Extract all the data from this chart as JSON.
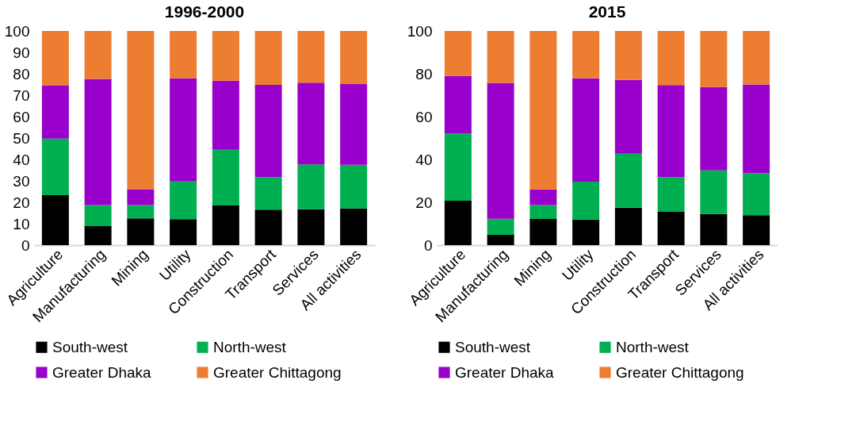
{
  "chart_data": [
    {
      "type": "bar",
      "title": "1996-2000",
      "stacked": true,
      "legend": "bottom",
      "grid": false,
      "categories": [
        "Agriculture",
        "Manufacturing",
        "Mining",
        "Utility",
        "Construction",
        "Transport",
        "Services",
        "All activities"
      ],
      "ylim": [
        0,
        100
      ],
      "yticks": [
        0,
        10,
        20,
        30,
        40,
        50,
        60,
        70,
        80,
        90,
        100
      ],
      "series": [
        {
          "name": "South-west",
          "color": "#000000",
          "values": [
            23.3,
            8.9,
            12.5,
            12.1,
            18.5,
            16.6,
            16.8,
            17.1
          ]
        },
        {
          "name": "North-west",
          "color": "#00b050",
          "values": [
            26.4,
            9.8,
            6.2,
            17.6,
            26.0,
            15.2,
            20.9,
            20.4
          ]
        },
        {
          "name": "Greater Dhaka",
          "color": "#9900cc",
          "values": [
            24.7,
            58.9,
            7.4,
            48.2,
            32.3,
            43.0,
            38.1,
            37.7
          ]
        },
        {
          "name": "Greater Chittagong",
          "color": "#ed7d31",
          "values": [
            25.6,
            22.4,
            73.9,
            22.1,
            23.2,
            25.2,
            24.2,
            24.8
          ]
        }
      ]
    },
    {
      "type": "bar",
      "title": "2015",
      "stacked": true,
      "legend": "bottom",
      "grid": false,
      "categories": [
        "Agriculture",
        "Manufacturing",
        "Mining",
        "Utility",
        "Construction",
        "Transport",
        "Services",
        "All activities"
      ],
      "ylim": [
        0,
        100
      ],
      "yticks": [
        0,
        20,
        40,
        60,
        80,
        100
      ],
      "series": [
        {
          "name": "South-west",
          "color": "#000000",
          "values": [
            20.7,
            4.8,
            12.2,
            11.9,
            17.5,
            15.6,
            14.5,
            14.0
          ]
        },
        {
          "name": "North-west",
          "color": "#00b050",
          "values": [
            31.4,
            7.5,
            6.5,
            17.7,
            25.2,
            16.2,
            20.4,
            19.5
          ]
        },
        {
          "name": "Greater Dhaka",
          "color": "#9900cc",
          "values": [
            26.9,
            63.4,
            7.3,
            48.3,
            34.4,
            42.9,
            38.9,
            41.5
          ]
        },
        {
          "name": "Greater Chittagong",
          "color": "#ed7d31",
          "values": [
            21.0,
            24.3,
            74.0,
            22.1,
            22.9,
            25.3,
            26.2,
            25.0
          ]
        }
      ]
    }
  ]
}
